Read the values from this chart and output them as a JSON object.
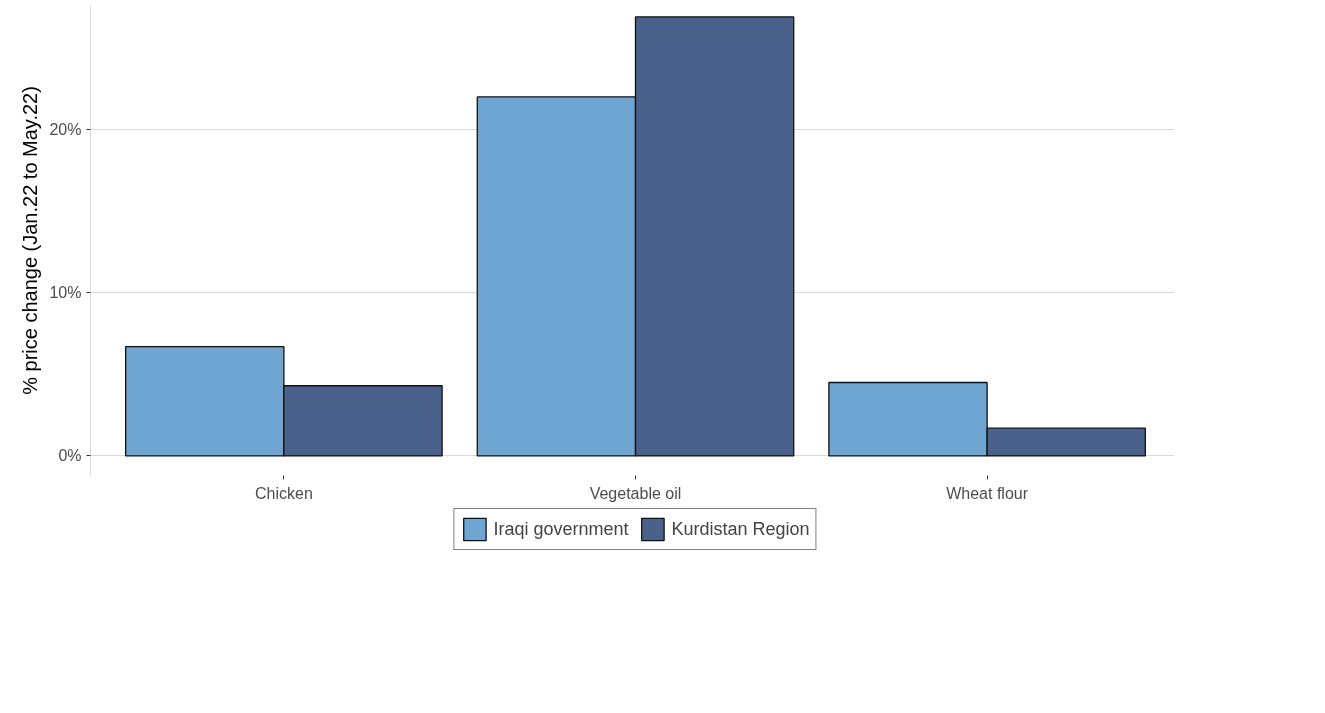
{
  "chart_data": {
    "type": "bar",
    "ylabel": "% price change (Jan.22 to May.22)",
    "categories": [
      "Chicken",
      "Vegetable oil",
      "Wheat flour"
    ],
    "series": [
      {
        "name": "Iraqi government",
        "color": "#6ea5d1",
        "values": [
          6.7,
          22.0,
          4.5
        ]
      },
      {
        "name": "Kurdistan Region",
        "color": "#4a618b",
        "values": [
          4.3,
          26.9,
          1.7
        ]
      }
    ],
    "ylim": [
      -1.2,
      27.6
    ],
    "yticks": [
      {
        "value": 0,
        "label": "0%"
      },
      {
        "value": 10,
        "label": "10%"
      },
      {
        "value": 20,
        "label": "20%"
      }
    ],
    "grid": "y",
    "legend": "bottom"
  }
}
